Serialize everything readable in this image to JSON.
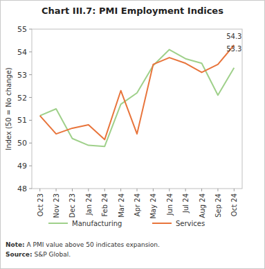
{
  "chart_data": {
    "type": "line",
    "title": "Chart III.7: PMI Employment Indices",
    "y_label": "Index (50 = No change)",
    "categories": [
      "Oct 23",
      "Nov 23",
      "Dec 23",
      "Jan 24",
      "Feb 24",
      "Mar 24",
      "Apr 24",
      "May 24",
      "Jun 24",
      "Jul 24",
      "Aug 24",
      "Sep 24",
      "Oct 24"
    ],
    "series": [
      {
        "name": "Manufacturing",
        "color": "#9fd08a",
        "values": [
          51.2,
          51.5,
          50.2,
          49.9,
          49.85,
          51.7,
          52.2,
          53.4,
          54.1,
          53.7,
          53.5,
          52.1,
          53.3
        ],
        "value_labels": [
          null,
          null,
          null,
          null,
          null,
          null,
          null,
          null,
          null,
          null,
          null,
          null,
          "53.3"
        ]
      },
      {
        "name": "Services",
        "color": "#e8743b",
        "values": [
          51.2,
          50.4,
          50.65,
          50.8,
          50.15,
          52.3,
          50.4,
          53.45,
          53.75,
          53.5,
          53.1,
          53.45,
          54.3
        ],
        "value_labels": [
          null,
          null,
          null,
          null,
          null,
          null,
          null,
          null,
          null,
          null,
          null,
          null,
          "54.3"
        ]
      }
    ],
    "ylim": [
      48,
      55
    ],
    "yticks": [
      48,
      49,
      50,
      51,
      52,
      53,
      54,
      55
    ],
    "grid": false,
    "legend": "bottom",
    "note": "Note: A PMI value above 50 indicates expansion.",
    "source": "Source: S&P Global."
  }
}
